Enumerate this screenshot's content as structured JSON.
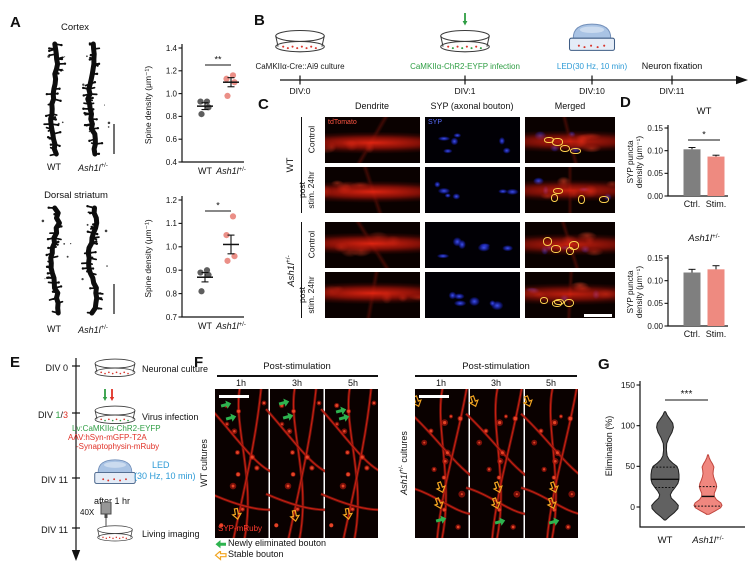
{
  "panels": {
    "A": {
      "label": "A",
      "cortex_title": "Cortex",
      "striatum_title": "Dorsal striatum",
      "wt_label": "WT",
      "ash_label": {
        "base": "Ash1l",
        "sup": "+/-"
      }
    },
    "B": {
      "label": "B",
      "steps": [
        {
          "text": "CaMKIIα-Cre::Ai9 culture",
          "div": "DIV:0"
        },
        {
          "text": "CaMKIIα-ChR2-EYFP infection",
          "div": "DIV:1"
        },
        {
          "text": "LED(30 Hz, 10 min)",
          "div": "DIV:10"
        },
        {
          "text": "Neuron fixation",
          "div": "DIV:11"
        }
      ]
    },
    "C": {
      "label": "C",
      "col_headers": [
        "Dendrite",
        "SYP (axonal bouton)",
        "Merged"
      ],
      "overlay_labels": {
        "dendrite": "tdTomato",
        "syp": "SYP"
      },
      "group_wt": "WT",
      "group_ash": {
        "base": "Ash1l",
        "sup": "+/-"
      },
      "row_control": "Control",
      "row_post_line1": "post",
      "row_post_line2": "stim. 24hr"
    },
    "D": {
      "label": "D"
    },
    "E": {
      "label": "E",
      "steps": [
        {
          "div": "DIV 0",
          "text": "Neuronal culture"
        },
        {
          "div_black": "DIV ",
          "div_green": "1",
          "div_slash": "/",
          "div_red": "3",
          "text": "Virus infection",
          "note_green": "Lv:CaMKIIα-ChR2-EYFP",
          "note_red1": "AAV:hSyn-mGFP-T2A",
          "note_red2": "-Synaptophysin-mRuby"
        },
        {
          "div": "DIV 11",
          "text_line1": "LED",
          "text_line2": "(30 Hz, 10 min)",
          "after": "after 1 hr"
        },
        {
          "div": "DIV 11",
          "objective": "40X",
          "text": "Living imaging"
        }
      ]
    },
    "F": {
      "label": "F",
      "header": "Post-stimulation",
      "timepoints": [
        "1h",
        "3h",
        "5h"
      ],
      "left_group": "WT cultures",
      "right_group": {
        "base": "Ash1l",
        "sup": "+/-",
        "rest": " cultures"
      },
      "image_tag": "SYP-mRuby",
      "legend": [
        {
          "symbol": "green-arrow",
          "text": "Newly eliminated bouton"
        },
        {
          "symbol": "yellow-arrow",
          "text": "Stable bouton"
        }
      ]
    },
    "G": {
      "label": "G"
    }
  },
  "chart_data": [
    {
      "id": "spine_cortex",
      "type": "scatter",
      "region": "Cortex",
      "ylabel": "Spine density (μm⁻¹)",
      "ylim": [
        0.4,
        1.4
      ],
      "yticks": [
        0.4,
        0.6,
        0.8,
        1.0,
        1.2,
        1.4
      ],
      "ytick_labels": [
        "0.4",
        "0.6",
        "0.8",
        "1.0",
        "1.2",
        "1.4"
      ],
      "sig": "**",
      "groups": [
        {
          "label_base": "WT",
          "italic": false,
          "color": "#4d4d4d",
          "points": [
            0.82,
            0.88,
            0.93,
            0.93
          ],
          "mean": 0.89,
          "sem": 0.03
        },
        {
          "label_base": "Ash1l",
          "label_sup": "+/-",
          "italic": true,
          "color": "#e9837a",
          "points": [
            0.98,
            1.1,
            1.13,
            1.16
          ],
          "mean": 1.1,
          "sem": 0.04
        }
      ]
    },
    {
      "id": "spine_striatum",
      "type": "scatter",
      "region": "Dorsal striatum",
      "ylabel": "Spine density (μm⁻¹)",
      "ylim": [
        0.7,
        1.2
      ],
      "yticks": [
        0.7,
        0.8,
        0.9,
        1.0,
        1.1,
        1.2
      ],
      "ytick_labels": [
        "0.7",
        "0.8",
        "0.9",
        "1.0",
        "1.1",
        "1.2"
      ],
      "sig": "*",
      "groups": [
        {
          "label_base": "WT",
          "italic": false,
          "color": "#4d4d4d",
          "points": [
            0.81,
            0.88,
            0.89,
            0.9
          ],
          "mean": 0.87,
          "sem": 0.02
        },
        {
          "label_base": "Ash1l",
          "label_sup": "+/-",
          "italic": true,
          "color": "#e9837a",
          "points": [
            0.94,
            0.96,
            1.05,
            1.13
          ],
          "mean": 1.01,
          "sem": 0.04
        }
      ]
    },
    {
      "id": "syp_wt",
      "type": "bar",
      "title": "WT",
      "title_italic": false,
      "ylabel_lines": [
        "SYP puncta",
        "density (μm⁻¹)"
      ],
      "ylim": [
        0,
        0.15
      ],
      "yticks": [
        0,
        0.05,
        0.1,
        0.15
      ],
      "ytick_labels": [
        "0.00",
        "0.05",
        "0.10",
        "0.15"
      ],
      "categories": [
        "Ctrl.",
        "Stim."
      ],
      "values": [
        0.103,
        0.087
      ],
      "errors": [
        0.004,
        0.003
      ],
      "colors": [
        "#7f7f7f",
        "#ee8a80"
      ],
      "sig": "*"
    },
    {
      "id": "syp_ash",
      "type": "bar",
      "title": "Ash1l",
      "title_sup": "+/-",
      "title_italic": true,
      "ylabel_lines": [
        "SYP puncta",
        "density (μm⁻¹)"
      ],
      "ylim": [
        0,
        0.15
      ],
      "yticks": [
        0,
        0.05,
        0.1,
        0.15
      ],
      "ytick_labels": [
        "0.00",
        "0.05",
        "0.10",
        "0.15"
      ],
      "categories": [
        "Ctrl.",
        "Stim."
      ],
      "values": [
        0.118,
        0.125
      ],
      "errors": [
        0.007,
        0.008
      ],
      "colors": [
        "#7f7f7f",
        "#ee8a80"
      ],
      "sig": null
    },
    {
      "id": "elimination",
      "type": "violin",
      "ylabel": "Elimination (%)",
      "ylim": [
        -25,
        155
      ],
      "yticks": [
        0,
        50,
        100,
        150
      ],
      "ytick_labels": [
        "0",
        "50",
        "100",
        "150"
      ],
      "sig": "***",
      "groups": [
        {
          "label_base": "WT",
          "italic": false,
          "fill": "#5c5c5c",
          "stroke": "#1f1f1f",
          "median": 34,
          "q1": 24,
          "q3": 49,
          "profile": [
            [
              -16,
              0.05
            ],
            [
              -12,
              0.3
            ],
            [
              -7,
              0.65
            ],
            [
              -2,
              0.92
            ],
            [
              2,
              0.95
            ],
            [
              6,
              0.75
            ],
            [
              11,
              0.45
            ],
            [
              15,
              0.38
            ],
            [
              19,
              0.5
            ],
            [
              24,
              0.72
            ],
            [
              29,
              0.92
            ],
            [
              34,
              1.0
            ],
            [
              40,
              1.0
            ],
            [
              46,
              0.95
            ],
            [
              50,
              0.85
            ],
            [
              54,
              0.55
            ],
            [
              58,
              0.3
            ],
            [
              63,
              0.15
            ],
            [
              70,
              0.1
            ],
            [
              78,
              0.12
            ],
            [
              85,
              0.28
            ],
            [
              92,
              0.5
            ],
            [
              98,
              0.6
            ],
            [
              103,
              0.55
            ],
            [
              108,
              0.35
            ],
            [
              113,
              0.15
            ],
            [
              117,
              0.04
            ]
          ]
        },
        {
          "label_base": "Ash1l",
          "label_sup": "+/-",
          "italic": true,
          "fill": "#f0837b",
          "stroke": "#c0463e",
          "median": 13,
          "q1": 1,
          "q3": 25,
          "profile": [
            [
              -9,
              0.08
            ],
            [
              -5,
              0.5
            ],
            [
              -1,
              0.9
            ],
            [
              2,
              1.0
            ],
            [
              5,
              0.92
            ],
            [
              9,
              0.6
            ],
            [
              13,
              0.45
            ],
            [
              17,
              0.45
            ],
            [
              21,
              0.55
            ],
            [
              25,
              0.62
            ],
            [
              29,
              0.58
            ],
            [
              33,
              0.48
            ],
            [
              37,
              0.4
            ],
            [
              41,
              0.36
            ],
            [
              45,
              0.38
            ],
            [
              49,
              0.42
            ],
            [
              53,
              0.32
            ],
            [
              57,
              0.18
            ],
            [
              61,
              0.08
            ],
            [
              64,
              0.03
            ]
          ]
        }
      ]
    }
  ]
}
